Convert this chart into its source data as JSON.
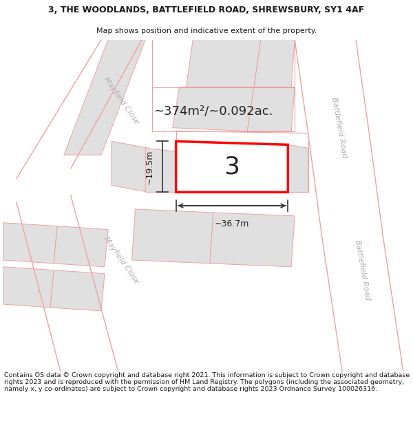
{
  "title_line1": "3, THE WOODLANDS, BATTLEFIELD ROAD, SHREWSBURY, SY1 4AF",
  "title_line2": "Map shows position and indicative extent of the property.",
  "footer_text": "Contains OS data © Crown copyright and database right 2021. This information is subject to Crown copyright and database rights 2023 and is reproduced with the permission of HM Land Registry. The polygons (including the associated geometry, namely x, y co-ordinates) are subject to Crown copyright and database rights 2023 Ordnance Survey 100026316.",
  "background_color": "#ffffff",
  "title_fontsize": 9.0,
  "subtitle_fontsize": 8.0,
  "footer_fontsize": 6.8,
  "property_label": "3",
  "area_annotation": "~374m²/~0.092ac.",
  "width_annotation": "~36.7m",
  "height_annotation": "~19.5m",
  "highlight_color": "#ff0000",
  "outline_color": "#f0a0a0",
  "street_name1": "Mayfield Close",
  "street_name2": "Battlefield Road",
  "gray_fill": "#e0e0e0",
  "white_fill": "#ffffff",
  "road_label_color": "#b0b0b0",
  "text_color": "#1a1a1a",
  "dim_color": "#606060"
}
